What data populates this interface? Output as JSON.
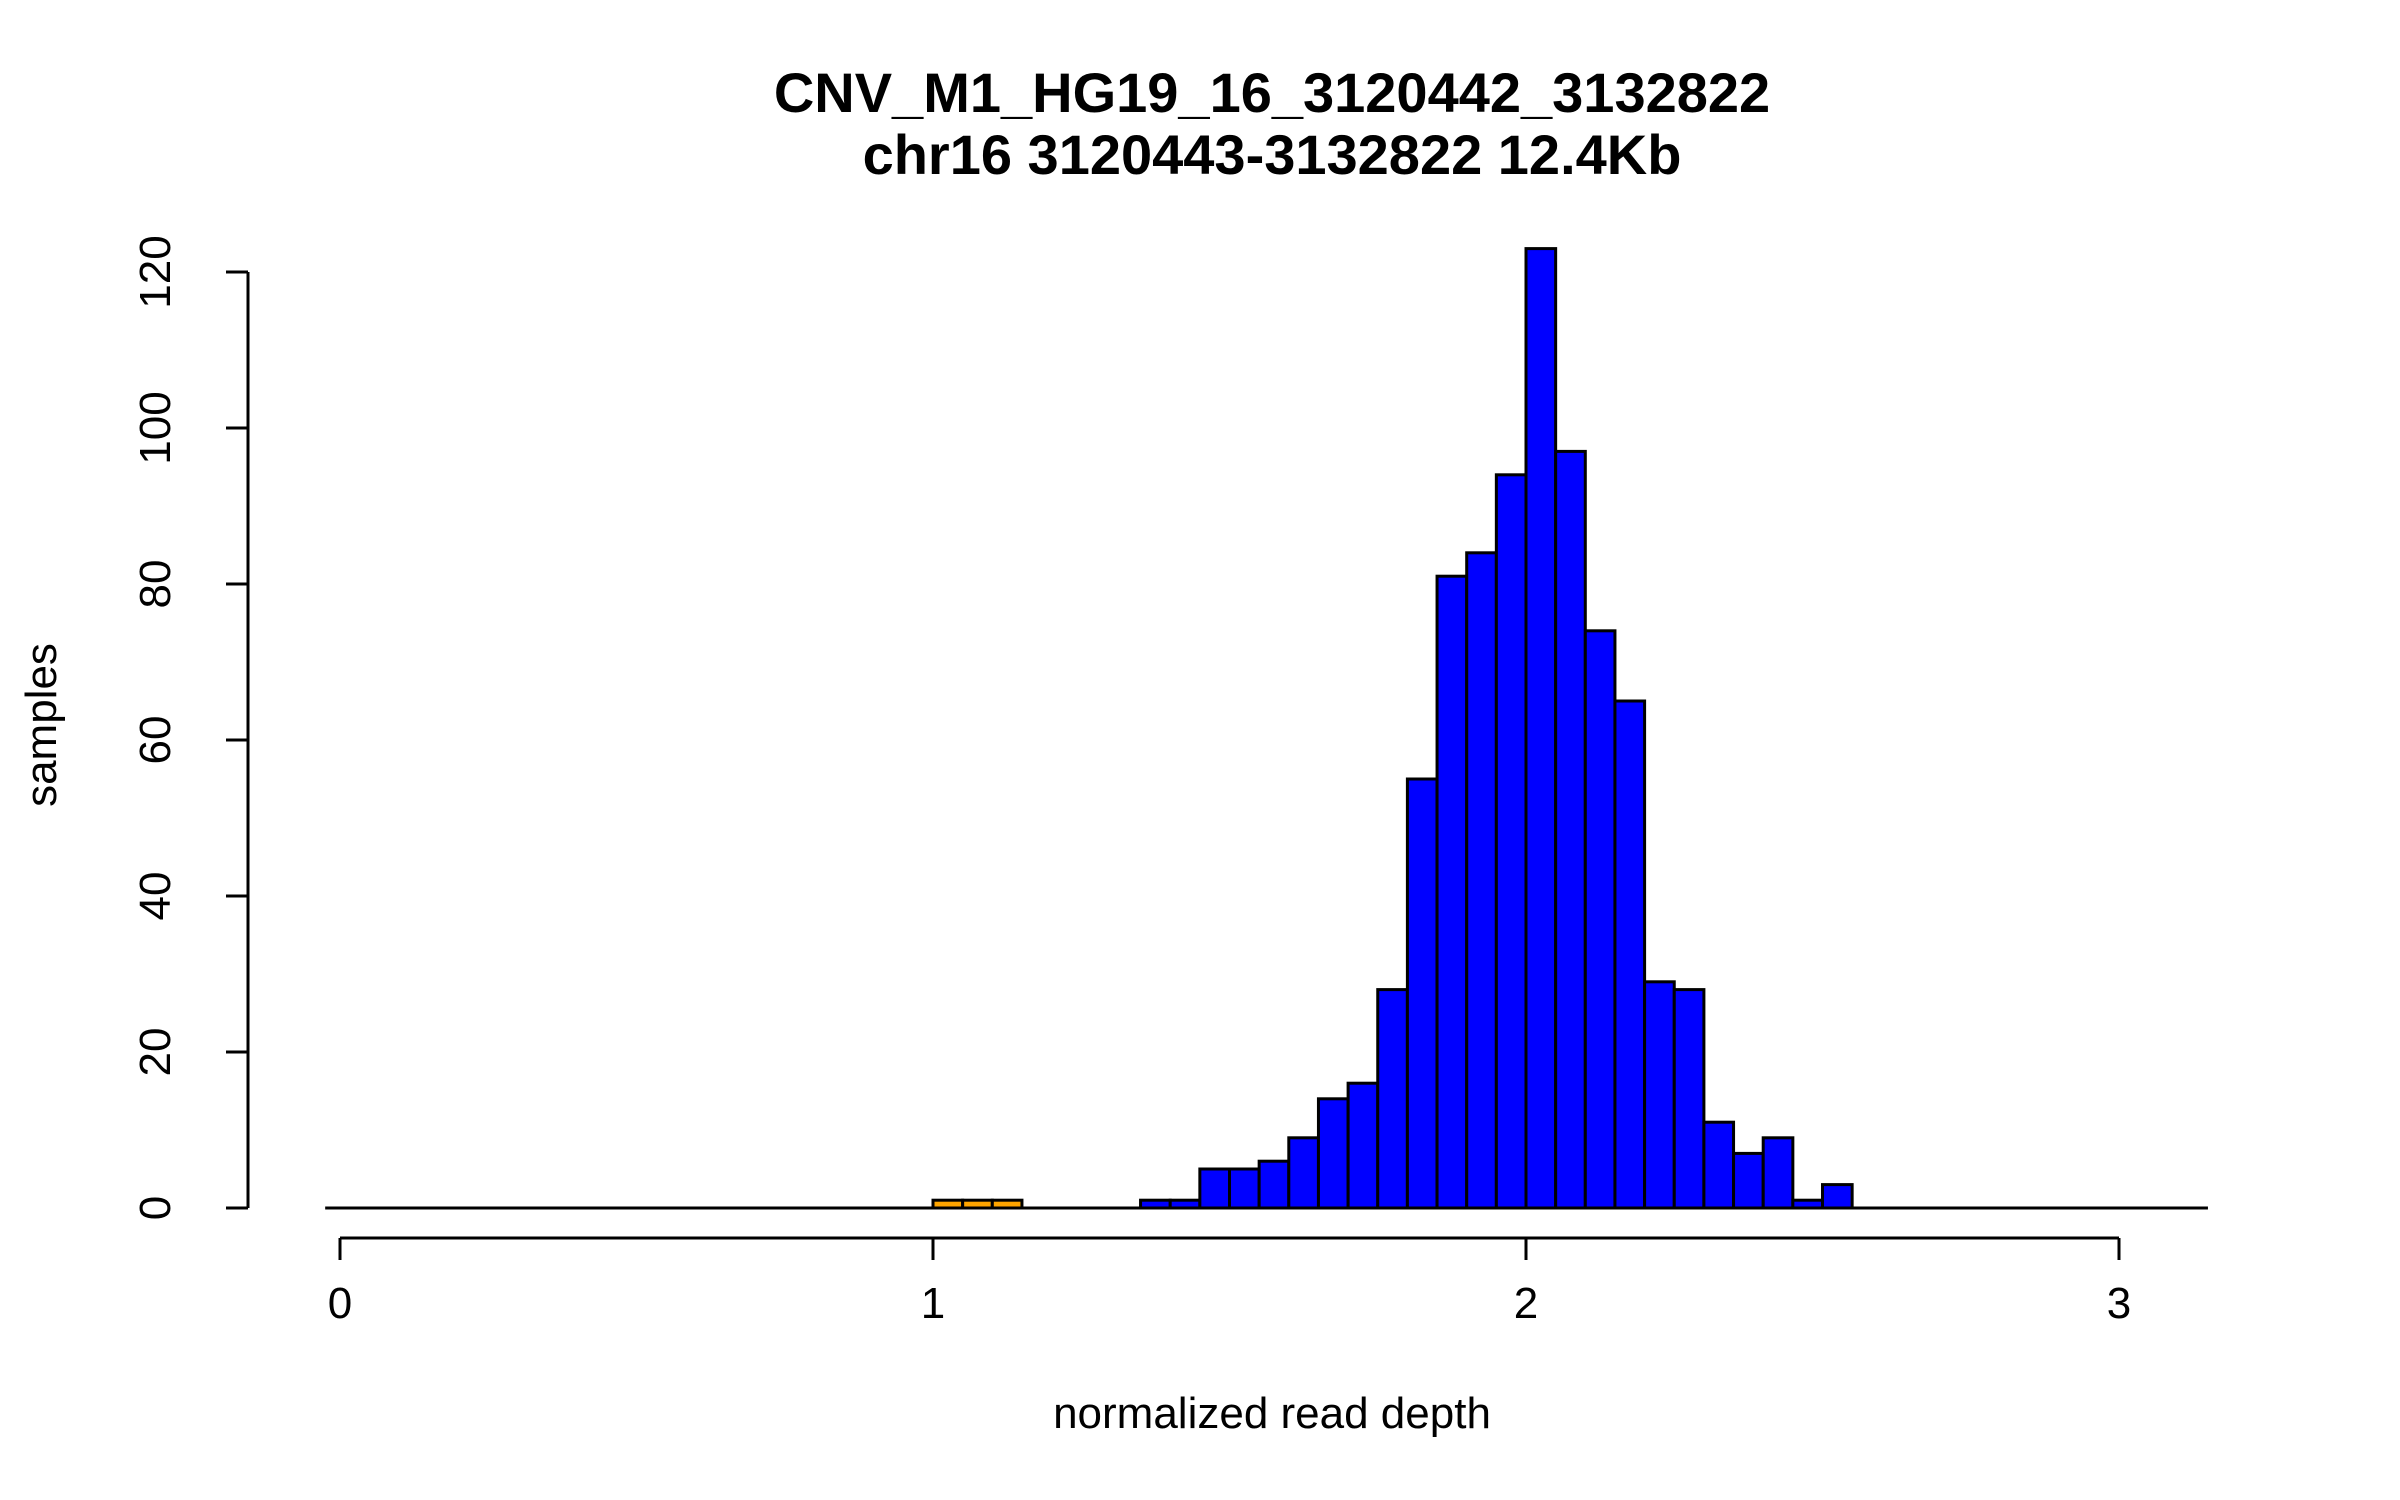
{
  "chart_data": {
    "type": "bar",
    "title": "CNV_M1_HG19_16_3120442_3132822",
    "subtitle": "chr16 3120443-3132822 12.4Kb",
    "xlabel": "normalized read depth",
    "ylabel": "samples",
    "xlim": [
      0,
      3.15
    ],
    "ylim": [
      0,
      120
    ],
    "x_ticks": [
      0,
      1,
      2,
      3
    ],
    "y_ticks": [
      0,
      20,
      40,
      60,
      80,
      100,
      120
    ],
    "bin_width": 0.05,
    "baseline_range": [
      -0.025,
      3.15
    ],
    "colors": {
      "bars": "#0000ff",
      "highlight": "#ffa500",
      "outline": "#000000"
    },
    "bins": [
      {
        "x": 1.0,
        "count": 1,
        "color": "#ffa500"
      },
      {
        "x": 1.05,
        "count": 1,
        "color": "#ffa500"
      },
      {
        "x": 1.1,
        "count": 1,
        "color": "#ffa500"
      },
      {
        "x": 1.35,
        "count": 1,
        "color": "#0000ff"
      },
      {
        "x": 1.4,
        "count": 1,
        "color": "#0000ff"
      },
      {
        "x": 1.45,
        "count": 5,
        "color": "#0000ff"
      },
      {
        "x": 1.5,
        "count": 5,
        "color": "#0000ff"
      },
      {
        "x": 1.55,
        "count": 6,
        "color": "#0000ff"
      },
      {
        "x": 1.6,
        "count": 9,
        "color": "#0000ff"
      },
      {
        "x": 1.65,
        "count": 14,
        "color": "#0000ff"
      },
      {
        "x": 1.7,
        "count": 16,
        "color": "#0000ff"
      },
      {
        "x": 1.75,
        "count": 28,
        "color": "#0000ff"
      },
      {
        "x": 1.8,
        "count": 55,
        "color": "#0000ff"
      },
      {
        "x": 1.85,
        "count": 81,
        "color": "#0000ff"
      },
      {
        "x": 1.9,
        "count": 84,
        "color": "#0000ff"
      },
      {
        "x": 1.95,
        "count": 94,
        "color": "#0000ff"
      },
      {
        "x": 2.0,
        "count": 123,
        "color": "#0000ff"
      },
      {
        "x": 2.05,
        "count": 97,
        "color": "#0000ff"
      },
      {
        "x": 2.1,
        "count": 74,
        "color": "#0000ff"
      },
      {
        "x": 2.15,
        "count": 65,
        "color": "#0000ff"
      },
      {
        "x": 2.2,
        "count": 29,
        "color": "#0000ff"
      },
      {
        "x": 2.25,
        "count": 28,
        "color": "#0000ff"
      },
      {
        "x": 2.3,
        "count": 11,
        "color": "#0000ff"
      },
      {
        "x": 2.35,
        "count": 7,
        "color": "#0000ff"
      },
      {
        "x": 2.4,
        "count": 9,
        "color": "#0000ff"
      },
      {
        "x": 2.45,
        "count": 1,
        "color": "#0000ff"
      },
      {
        "x": 2.5,
        "count": 3,
        "color": "#0000ff"
      }
    ]
  }
}
